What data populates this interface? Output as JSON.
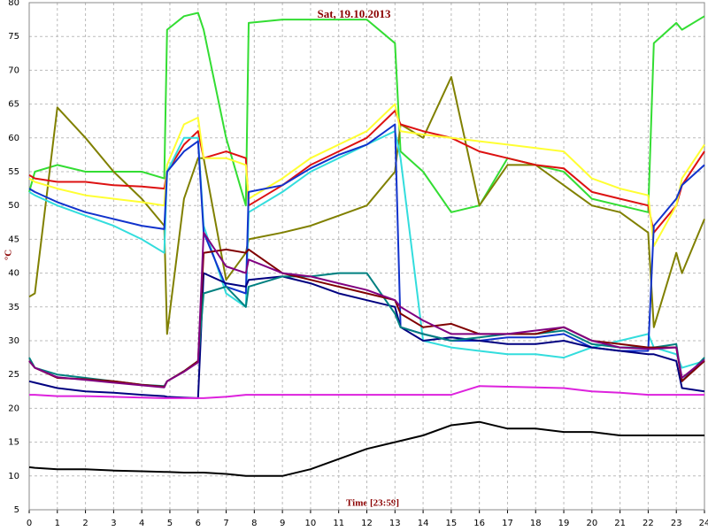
{
  "chart_data": {
    "type": "line",
    "title": "Sat, 19.10.2013",
    "x_label": "Time [23:59]",
    "y_label": "°C",
    "xlim": [
      0,
      24
    ],
    "xticks": [
      0,
      1,
      2,
      3,
      4,
      5,
      6,
      7,
      8,
      9,
      10,
      11,
      12,
      13,
      14,
      15,
      16,
      17,
      18,
      19,
      20,
      21,
      22,
      23,
      24
    ],
    "ylim": [
      5,
      80
    ],
    "yticks": [
      5,
      10,
      15,
      20,
      25,
      30,
      35,
      40,
      45,
      50,
      55,
      60,
      65,
      70,
      75,
      80
    ],
    "grid": true,
    "x": [
      0,
      0.2,
      1,
      2,
      3,
      4,
      4.8,
      4.9,
      5.5,
      6,
      6.2,
      7,
      7.7,
      7.8,
      9,
      10,
      11,
      12,
      13,
      13.2,
      14,
      15,
      16,
      17,
      18,
      19,
      20,
      21,
      22,
      22.2,
      23,
      23.2,
      24
    ],
    "series": [
      {
        "color": "#33dd33",
        "values": [
          52,
          55,
          56,
          55,
          55,
          55,
          54,
          76,
          78,
          78.5,
          76,
          60,
          50,
          77,
          77.5,
          77.5,
          77.5,
          77.5,
          74,
          58,
          55,
          49,
          50,
          57,
          56,
          55,
          51,
          50,
          49,
          74,
          77,
          76,
          78
        ]
      },
      {
        "color": "#808000",
        "values": [
          36.5,
          37,
          64.5,
          60,
          55,
          51,
          47,
          31,
          51,
          57,
          57,
          39,
          43,
          45,
          46,
          47,
          48.5,
          50,
          55,
          62,
          60,
          69,
          50,
          56,
          56,
          53,
          50,
          49,
          46,
          32,
          43,
          40,
          48
        ]
      },
      {
        "color": "#dd1111",
        "values": [
          54.5,
          54,
          53.5,
          53.5,
          53,
          52.8,
          52.5,
          55,
          59,
          61,
          57,
          58,
          57,
          50,
          53,
          56,
          58,
          60,
          64,
          62,
          61,
          60,
          58,
          57,
          56,
          55.5,
          52,
          51,
          50,
          46,
          50,
          53,
          58
        ]
      },
      {
        "color": "#ffff33",
        "values": [
          54,
          53.5,
          52.5,
          51.5,
          51,
          50.5,
          50,
          56,
          62,
          63,
          57,
          57,
          56,
          51,
          54,
          57,
          59,
          61,
          65,
          61,
          60.5,
          60,
          59.5,
          59,
          58.5,
          58,
          54,
          52.5,
          51.5,
          44,
          50,
          54,
          59
        ]
      },
      {
        "color": "#33dddd",
        "values": [
          52,
          51.5,
          50,
          48.5,
          47,
          45,
          43,
          55,
          60,
          60,
          47,
          37,
          35,
          49,
          52,
          55,
          57,
          59,
          61,
          57,
          30,
          29,
          28.5,
          28,
          28,
          27.5,
          29,
          30,
          31,
          29,
          28,
          26,
          27
        ]
      },
      {
        "color": "#1133cc",
        "values": [
          52.5,
          52,
          50.5,
          49,
          48,
          47,
          46.5,
          55,
          58,
          59.5,
          46,
          38,
          37,
          52,
          53,
          55.5,
          57.5,
          59,
          62,
          32,
          31,
          30,
          30,
          30.5,
          30.5,
          31,
          29,
          28.5,
          28.5,
          47,
          51,
          53,
          56
        ]
      },
      {
        "color": "#000080",
        "values": [
          24,
          23.8,
          23,
          22.5,
          22.3,
          22,
          21.8,
          21.7,
          21.6,
          21.5,
          40,
          38.5,
          38,
          39,
          39.5,
          38.5,
          37,
          36,
          35,
          32,
          30,
          30.5,
          30,
          29.5,
          29.5,
          30,
          29,
          28.5,
          28,
          28,
          27,
          23,
          22.5
        ]
      },
      {
        "color": "#008080",
        "values": [
          27.5,
          26,
          25,
          24.5,
          24,
          23.5,
          23.3,
          24,
          25.5,
          27,
          37,
          38,
          35,
          38,
          39.5,
          39.5,
          40,
          40,
          34,
          32,
          31,
          30,
          30.5,
          31,
          31,
          31.5,
          29.5,
          29,
          29,
          29,
          29.5,
          24,
          27.5
        ]
      },
      {
        "color": "#800000",
        "values": [
          27,
          26,
          24.5,
          24.3,
          24,
          23.5,
          23.2,
          24,
          25.5,
          27,
          43,
          43.5,
          43,
          43.5,
          40,
          39,
          38,
          37,
          36,
          34,
          32,
          32.5,
          31,
          31,
          31,
          32,
          30,
          29.5,
          29,
          29,
          29,
          24,
          27
        ]
      },
      {
        "color": "#800080",
        "values": [
          27,
          26,
          24.6,
          24.2,
          23.8,
          23.4,
          23.1,
          24,
          25.4,
          26.8,
          46,
          41,
          40,
          42,
          40,
          39.5,
          38.5,
          37.5,
          36,
          35,
          33,
          31,
          31,
          31,
          31.5,
          32,
          30,
          29,
          28.8,
          28.8,
          29,
          24.5,
          27.2
        ]
      },
      {
        "color": "#dd22dd",
        "values": [
          22,
          22,
          21.8,
          21.8,
          21.7,
          21.6,
          21.5,
          21.5,
          21.5,
          21.5,
          21.5,
          21.7,
          22,
          22,
          22,
          22,
          22,
          22,
          22,
          22,
          22,
          22,
          23.3,
          23.2,
          23.1,
          23,
          22.5,
          22.3,
          22,
          22,
          22,
          22,
          22
        ]
      },
      {
        "color": "#000000",
        "values": [
          11.3,
          11.2,
          11,
          11,
          10.8,
          10.7,
          10.6,
          10.6,
          10.5,
          10.5,
          10.5,
          10.3,
          10,
          10,
          10,
          11,
          12.5,
          14,
          15,
          15.2,
          16,
          17.5,
          18,
          17,
          17,
          16.5,
          16.5,
          16,
          16,
          16,
          16,
          16,
          16
        ]
      }
    ]
  }
}
